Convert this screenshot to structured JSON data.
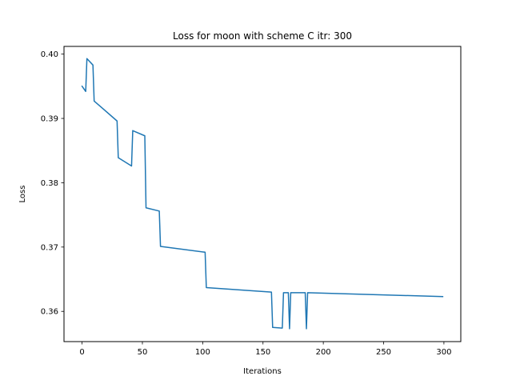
{
  "chart_data": {
    "type": "line",
    "title": "Loss for moon with scheme C itr: 300",
    "xlabel": "Iterations",
    "ylabel": "Loss",
    "xlim": [
      -15,
      314
    ],
    "ylim": [
      0.3553,
      0.4012
    ],
    "xticks": [
      0,
      50,
      100,
      150,
      200,
      250,
      300
    ],
    "xtick_labels": [
      "0",
      "50",
      "100",
      "150",
      "200",
      "250",
      "300"
    ],
    "yticks": [
      0.36,
      0.37,
      0.38,
      0.39,
      0.4
    ],
    "ytick_labels": [
      "0.36",
      "0.37",
      "0.38",
      "0.39",
      "0.40"
    ],
    "grid": false,
    "legend": "none",
    "series": [
      {
        "color": "#1f77b4",
        "x": [
          0,
          3,
          4,
          9,
          10,
          29,
          30,
          41,
          42,
          52,
          53,
          64,
          65,
          102,
          103,
          157,
          158,
          166,
          167,
          171,
          172,
          173,
          185,
          186,
          187,
          299
        ],
        "y": [
          0.395,
          0.3942,
          0.3993,
          0.3983,
          0.3927,
          0.3896,
          0.3839,
          0.3826,
          0.3881,
          0.3873,
          0.3761,
          0.3756,
          0.3701,
          0.3692,
          0.3637,
          0.363,
          0.3575,
          0.3574,
          0.3629,
          0.3629,
          0.3573,
          0.3629,
          0.3629,
          0.3573,
          0.3629,
          0.3623
        ]
      }
    ]
  }
}
